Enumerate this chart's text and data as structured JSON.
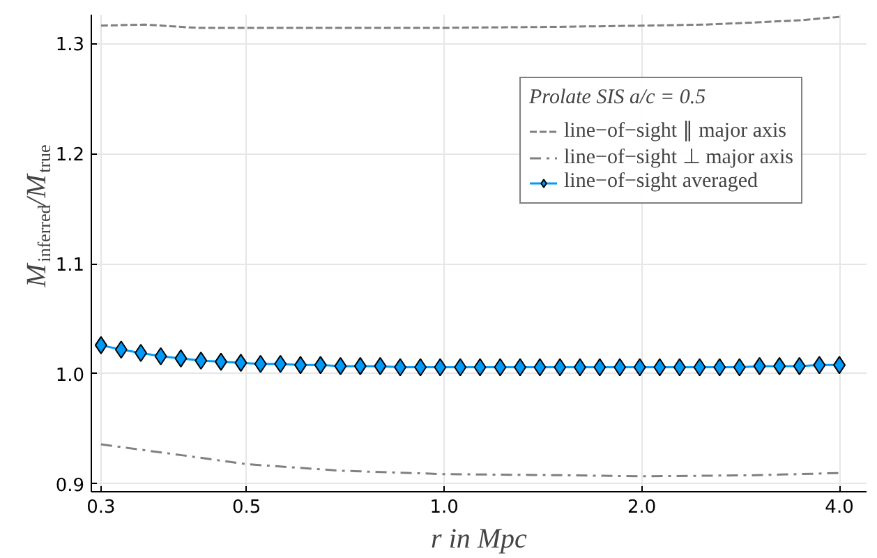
{
  "chart_data": {
    "type": "line",
    "xlabel": "r in Mpc",
    "ylabel": "M$_{inferred}$/M$_{true}$",
    "legend_title": "Prolate SIS a/c = 0.5",
    "log": "x",
    "xlim": [
      0.29,
      4.4
    ],
    "ylim": [
      0.893,
      1.326
    ],
    "xticks": [
      0.3,
      0.5,
      {
        "value": 1,
        "label": "1.0"
      },
      {
        "value": 2,
        "label": "2.0"
      },
      {
        "value": 4,
        "label": "4.0"
      }
    ],
    "yticks": [
      0.9,
      {
        "value": 1,
        "label": "1.0"
      },
      1.1,
      1.2,
      1.3
    ],
    "grid": true,
    "legend": "top right",
    "series": [
      {
        "name": "line−of−sight ∥ major axis",
        "color": "#808080",
        "line_style": "dashed",
        "marker": "none",
        "x": [
          0.3,
          0.35,
          0.42,
          0.6,
          1.0,
          1.5,
          2.0,
          2.5,
          3.0,
          3.5,
          4.0
        ],
        "values": [
          1.316,
          1.317,
          1.314,
          1.314,
          1.314,
          1.315,
          1.316,
          1.317,
          1.319,
          1.321,
          1.324
        ]
      },
      {
        "name": "line−of−sight ⊥ major axis",
        "color": "#808080",
        "line_style": "dashdot",
        "marker": "none",
        "x": [
          0.3,
          0.4,
          0.5,
          0.7,
          1.0,
          1.5,
          2.0,
          3.0,
          4.0
        ],
        "values": [
          0.936,
          0.926,
          0.918,
          0.912,
          0.909,
          0.908,
          0.907,
          0.908,
          0.91
        ]
      },
      {
        "name": "line−of−sight averaged",
        "color": "#009af9",
        "line_style": "solid",
        "marker": "diamond",
        "x": [
          0.3,
          0.322,
          0.345,
          0.37,
          0.397,
          0.426,
          0.457,
          0.49,
          0.525,
          0.563,
          0.604,
          0.648,
          0.695,
          0.745,
          0.799,
          0.857,
          0.92,
          0.986,
          1.058,
          1.134,
          1.217,
          1.305,
          1.399,
          1.501,
          1.61,
          1.726,
          1.852,
          1.986,
          2.13,
          2.284,
          2.45,
          2.628,
          2.818,
          3.023,
          3.242,
          3.477,
          3.729,
          4.0
        ],
        "values": [
          1.026,
          1.022,
          1.019,
          1.016,
          1.014,
          1.012,
          1.011,
          1.01,
          1.009,
          1.009,
          1.008,
          1.008,
          1.007,
          1.007,
          1.007,
          1.006,
          1.006,
          1.006,
          1.006,
          1.006,
          1.006,
          1.006,
          1.006,
          1.006,
          1.006,
          1.006,
          1.006,
          1.006,
          1.006,
          1.006,
          1.006,
          1.006,
          1.006,
          1.007,
          1.007,
          1.007,
          1.008,
          1.008
        ]
      }
    ]
  }
}
